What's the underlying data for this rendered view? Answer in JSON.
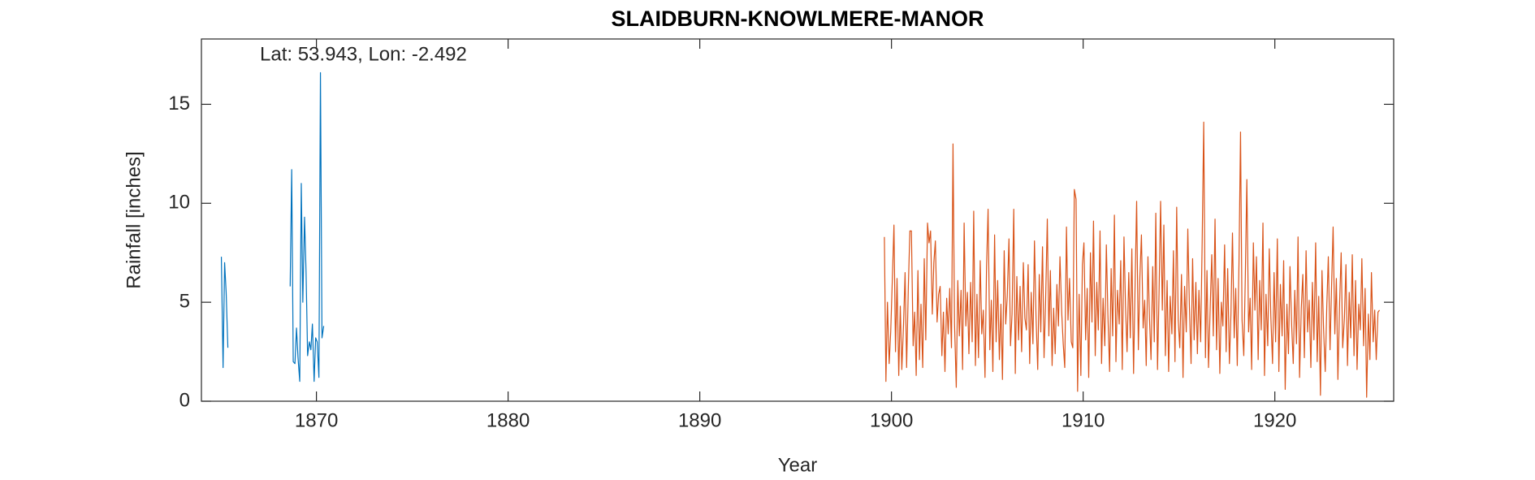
{
  "chart_data": {
    "type": "line",
    "title": "SLAIDBURN-KNOWLMERE-MANOR",
    "annotation": "Lat: 53.943, Lon: -2.492",
    "xlabel": "Year",
    "ylabel": "Rainfall [inches]",
    "xlim": [
      1864,
      1926.2
    ],
    "ylim": [
      0,
      18.3
    ],
    "xticks": [
      1870,
      1880,
      1890,
      1900,
      1910,
      1920
    ],
    "yticks": [
      0,
      5,
      10,
      15
    ],
    "grid": false,
    "series": [
      {
        "color": "#0072bd",
        "x": [
          1865.04,
          1865.13,
          1865.21,
          1865.29,
          1865.38,
          1867.0,
          1868.63,
          1868.71,
          1868.79,
          1868.88,
          1868.96,
          1869.04,
          1869.13,
          1869.21,
          1869.29,
          1869.38,
          1869.46,
          1869.54,
          1869.63,
          1869.71,
          1869.79,
          1869.88,
          1869.96,
          1870.04,
          1870.13,
          1870.21,
          1870.29,
          1870.38
        ],
        "values": [
          7.3,
          1.7,
          7.0,
          5.5,
          2.7,
          null,
          5.8,
          11.7,
          2.0,
          1.9,
          3.7,
          2.2,
          1.0,
          11.0,
          5.0,
          9.3,
          6.5,
          2.3,
          3.0,
          2.6,
          3.9,
          1.0,
          3.2,
          3.0,
          1.2,
          16.6,
          3.2,
          3.8
        ]
      },
      {
        "color": "#d95319",
        "x": [
          1899.63,
          1899.71,
          1899.79,
          1899.88,
          1899.96,
          1900.04,
          1900.13,
          1900.21,
          1900.29,
          1900.38,
          1900.46,
          1900.54,
          1900.63,
          1900.71,
          1900.79,
          1900.88,
          1900.96,
          1901.04,
          1901.13,
          1901.21,
          1901.29,
          1901.38,
          1901.46,
          1901.54,
          1901.63,
          1901.71,
          1901.79,
          1901.88,
          1901.96,
          1902.04,
          1902.13,
          1902.21,
          1902.29,
          1902.38,
          1902.46,
          1902.54,
          1902.63,
          1902.71,
          1902.79,
          1902.88,
          1902.96,
          1903.04,
          1903.13,
          1903.21,
          1903.29,
          1903.38,
          1903.46,
          1903.54,
          1903.63,
          1903.71,
          1903.79,
          1903.88,
          1903.96,
          1904.04,
          1904.13,
          1904.21,
          1904.29,
          1904.38,
          1904.46,
          1904.54,
          1904.63,
          1904.71,
          1904.79,
          1904.88,
          1904.96,
          1905.04,
          1905.13,
          1905.21,
          1905.29,
          1905.38,
          1905.46,
          1905.54,
          1905.63,
          1905.71,
          1905.79,
          1905.88,
          1905.96,
          1906.04,
          1906.13,
          1906.21,
          1906.29,
          1906.38,
          1906.46,
          1906.54,
          1906.63,
          1906.71,
          1906.79,
          1906.88,
          1906.96,
          1907.04,
          1907.13,
          1907.21,
          1907.29,
          1907.38,
          1907.46,
          1907.54,
          1907.63,
          1907.71,
          1907.79,
          1907.88,
          1907.96,
          1908.04,
          1908.13,
          1908.21,
          1908.29,
          1908.38,
          1908.46,
          1908.54,
          1908.63,
          1908.71,
          1908.79,
          1908.88,
          1908.96,
          1909.04,
          1909.13,
          1909.21,
          1909.29,
          1909.38,
          1909.46,
          1909.54,
          1909.63,
          1909.71,
          1909.79,
          1909.88,
          1909.96,
          1910.04,
          1910.13,
          1910.21,
          1910.29,
          1910.38,
          1910.46,
          1910.54,
          1910.63,
          1910.71,
          1910.79,
          1910.88,
          1910.96,
          1911.04,
          1911.13,
          1911.21,
          1911.29,
          1911.38,
          1911.46,
          1911.54,
          1911.63,
          1911.71,
          1911.79,
          1911.88,
          1911.96,
          1912.04,
          1912.13,
          1912.21,
          1912.29,
          1912.38,
          1912.46,
          1912.54,
          1912.63,
          1912.71,
          1912.79,
          1912.88,
          1912.96,
          1913.04,
          1913.13,
          1913.21,
          1913.29,
          1913.38,
          1913.46,
          1913.54,
          1913.63,
          1913.71,
          1913.79,
          1913.88,
          1913.96,
          1914.04,
          1914.13,
          1914.21,
          1914.29,
          1914.38,
          1914.46,
          1914.54,
          1914.63,
          1914.71,
          1914.79,
          1914.88,
          1914.96,
          1915.04,
          1915.13,
          1915.21,
          1915.29,
          1915.38,
          1915.46,
          1915.54,
          1915.63,
          1915.71,
          1915.79,
          1915.88,
          1915.96,
          1916.04,
          1916.13,
          1916.21,
          1916.29,
          1916.38,
          1916.46,
          1916.54,
          1916.63,
          1916.71,
          1916.79,
          1916.88,
          1916.96,
          1917.04,
          1917.13,
          1917.21,
          1917.29,
          1917.38,
          1917.46,
          1917.54,
          1917.63,
          1917.71,
          1917.79,
          1917.88,
          1917.96,
          1918.04,
          1918.13,
          1918.21,
          1918.29,
          1918.38,
          1918.46,
          1918.54,
          1918.63,
          1918.71,
          1918.79,
          1918.88,
          1918.96,
          1919.04,
          1919.13,
          1919.21,
          1919.29,
          1919.38,
          1919.46,
          1919.54,
          1919.63,
          1919.71,
          1919.79,
          1919.88,
          1919.96,
          1920.04,
          1920.13,
          1920.21,
          1920.29,
          1920.38,
          1920.46,
          1920.54,
          1920.63,
          1920.71,
          1920.79,
          1920.88,
          1920.96,
          1921.04,
          1921.13,
          1921.21,
          1921.29,
          1921.38,
          1921.46,
          1921.54,
          1921.63,
          1921.71,
          1921.79,
          1921.88,
          1921.96,
          1922.04,
          1922.13,
          1922.21,
          1922.29,
          1922.38,
          1922.46,
          1922.54,
          1922.63,
          1922.71,
          1922.79,
          1922.88,
          1922.96,
          1923.04,
          1923.13,
          1923.21,
          1923.29,
          1923.38,
          1923.46,
          1923.54,
          1923.63,
          1923.71,
          1923.79,
          1923.88,
          1923.96,
          1924.04,
          1924.13,
          1924.21,
          1924.29,
          1924.38,
          1924.46,
          1924.54,
          1924.63,
          1924.71,
          1924.79,
          1924.88,
          1924.96,
          1925.04,
          1925.13,
          1925.21,
          1925.29,
          1925.38,
          1925.46
        ],
        "values": [
          8.3,
          1.0,
          5.0,
          1.9,
          3.5,
          6.0,
          8.9,
          2.5,
          6.2,
          1.3,
          4.8,
          1.6,
          3.9,
          6.5,
          1.7,
          5.8,
          8.6,
          8.6,
          2.8,
          4.5,
          1.3,
          6.6,
          2.1,
          4.9,
          1.7,
          7.2,
          3.1,
          9.0,
          8.0,
          8.6,
          4.4,
          7.0,
          8.1,
          4.0,
          5.4,
          5.8,
          2.3,
          4.5,
          1.5,
          5.2,
          3.4,
          5.7,
          2.7,
          13.0,
          3.9,
          0.7,
          6.1,
          3.3,
          5.6,
          1.6,
          9.0,
          3.8,
          5.5,
          2.4,
          6.0,
          3.0,
          9.6,
          1.8,
          5.4,
          2.2,
          7.1,
          3.4,
          4.6,
          1.2,
          6.8,
          9.7,
          2.6,
          5.1,
          1.5,
          8.4,
          3.0,
          6.1,
          2.1,
          4.9,
          1.1,
          7.6,
          3.9,
          5.3,
          8.2,
          2.8,
          4.4,
          9.7,
          1.4,
          6.3,
          3.1,
          5.8,
          2.5,
          7.0,
          4.2,
          3.6,
          6.9,
          1.9,
          5.5,
          2.9,
          8.1,
          4.3,
          1.6,
          6.4,
          3.5,
          7.8,
          2.2,
          5.0,
          9.2,
          3.3,
          6.6,
          1.8,
          4.7,
          2.4,
          5.9,
          3.8,
          7.3,
          4.5,
          2.9,
          1.7,
          8.8,
          4.1,
          6.2,
          3.0,
          2.7,
          10.7,
          10.2,
          0.5,
          5.4,
          1.3,
          6.9,
          8.0,
          3.1,
          5.7,
          1.2,
          7.5,
          4.0,
          9.1,
          2.3,
          6.0,
          3.6,
          8.6,
          1.9,
          5.2,
          2.8,
          7.9,
          4.4,
          1.5,
          6.7,
          3.3,
          9.4,
          2.0,
          5.6,
          3.9,
          7.1,
          1.6,
          8.3,
          4.8,
          2.5,
          6.5,
          3.2,
          7.7,
          1.4,
          5.9,
          10.1,
          2.6,
          6.3,
          8.4,
          3.7,
          5.1,
          1.8,
          7.3,
          4.2,
          2.1,
          6.8,
          3.0,
          9.5,
          1.6,
          5.5,
          10.1,
          4.6,
          8.9,
          2.3,
          6.1,
          1.5,
          5.3,
          3.4,
          7.6,
          2.0,
          9.8,
          4.1,
          2.7,
          6.4,
          1.2,
          5.8,
          3.5,
          8.7,
          4.9,
          1.9,
          7.2,
          3.1,
          6.0,
          2.4,
          5.6,
          3.0,
          8.1,
          14.1,
          2.2,
          6.6,
          1.7,
          4.8,
          7.4,
          3.3,
          9.2,
          2.6,
          6.2,
          1.4,
          5.0,
          3.8,
          7.9,
          2.5,
          6.7,
          1.9,
          4.4,
          8.5,
          3.2,
          5.7,
          1.8,
          7.0,
          13.6,
          4.1,
          2.3,
          6.3,
          11.2,
          3.5,
          5.2,
          1.6,
          8.0,
          4.6,
          7.3,
          2.1,
          6.1,
          3.6,
          9.0,
          1.3,
          5.4,
          2.8,
          7.7,
          4.3,
          1.9,
          6.5,
          3.0,
          8.2,
          1.5,
          5.9,
          3.3,
          7.1,
          0.6,
          4.9,
          2.4,
          6.8,
          3.8,
          1.9,
          5.6,
          2.9,
          8.3,
          1.2,
          4.7,
          6.4,
          2.2,
          7.6,
          3.5,
          5.1,
          1.7,
          6.0,
          3.1,
          8.0,
          2.0,
          5.3,
          0.3,
          6.6,
          3.7,
          1.5,
          4.8,
          7.3,
          2.6,
          5.8,
          8.8,
          3.4,
          6.2,
          1.1,
          5.0,
          7.5,
          2.7,
          4.2,
          6.9,
          1.8,
          5.5,
          3.2,
          7.4,
          2.3,
          6.1,
          1.6,
          4.9,
          3.6,
          7.2,
          2.8,
          5.7,
          0.2,
          4.4,
          2.1,
          6.5,
          3.0,
          4.6,
          2.1,
          4.5,
          4.6
        ]
      }
    ]
  }
}
